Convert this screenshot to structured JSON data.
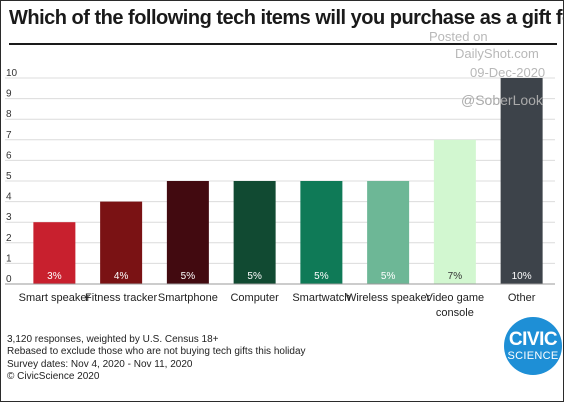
{
  "title": "Which of the following tech items will you purchase as a gift for the holidays?",
  "watermark": {
    "posted": "Posted on",
    "site": "DailyShot.com",
    "date": "09-Dec-2020",
    "handle": "@SoberLook"
  },
  "notes": [
    "3,120 responses, weighted by U.S. Census 18+",
    "Rebased to exclude those who are not buying tech gifts this holiday",
    "Survey dates: Nov 4, 2020 - Nov 11, 2020",
    "© CivicScience 2020"
  ],
  "logo": {
    "line1": "CIVIC",
    "line2": "SCIENCE",
    "color": "#1e8fd6"
  },
  "chart_data": {
    "type": "bar",
    "title": "Which of the following tech items will you purchase as a gift for the holidays?",
    "categories": [
      [
        "Smart speaker"
      ],
      [
        "Fitness tracker"
      ],
      [
        "Smartphone"
      ],
      [
        "Computer"
      ],
      [
        "Smartwatch"
      ],
      [
        "Wireless speaker"
      ],
      [
        "Video game",
        "console"
      ],
      [
        "Other"
      ]
    ],
    "values": [
      3,
      4,
      5,
      5,
      5,
      5,
      7,
      10
    ],
    "data_labels": [
      "3%",
      "4%",
      "5%",
      "5%",
      "5%",
      "5%",
      "7%",
      "10%"
    ],
    "colors": [
      "#c8202e",
      "#7a1214",
      "#420a10",
      "#114a32",
      "#0f7a57",
      "#6db796",
      "#d2f7d0",
      "#3d434a"
    ],
    "label_colors": [
      "#ffffff",
      "#ffffff",
      "#ffffff",
      "#ffffff",
      "#ffffff",
      "#ffffff",
      "#333333",
      "#ffffff"
    ],
    "yticks": [
      0,
      1,
      2,
      3,
      4,
      5,
      6,
      7,
      8,
      9,
      10
    ],
    "ylim": [
      0,
      10
    ],
    "grid": true,
    "xlabel": "",
    "ylabel": ""
  }
}
